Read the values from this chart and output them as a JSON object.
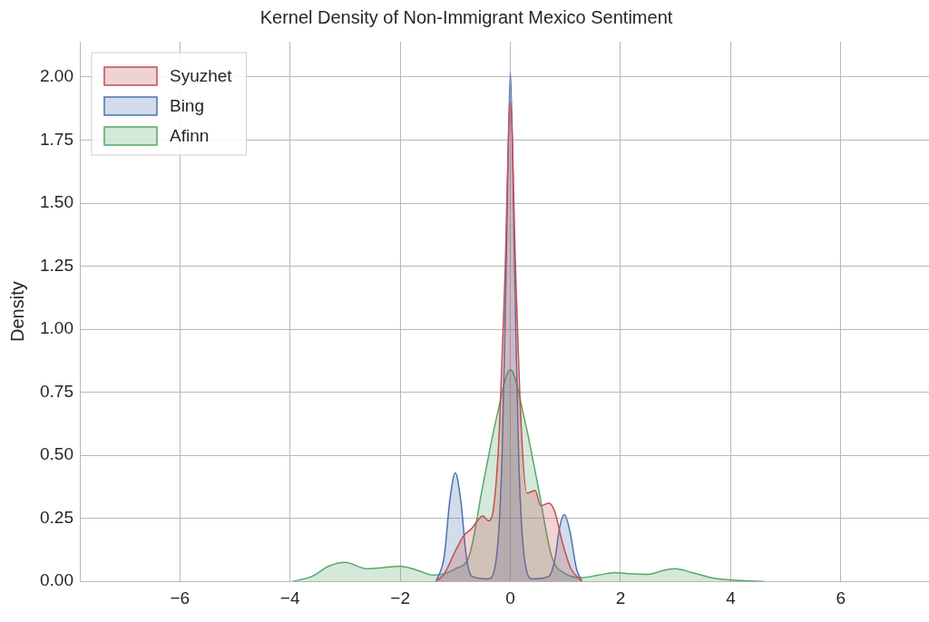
{
  "chart_data": {
    "type": "area",
    "title": "Kernel Density of Non-Immigrant Mexico Sentiment",
    "ylabel": "Density",
    "xlim": [
      -7.8,
      7.6
    ],
    "ylim": [
      0,
      2.14
    ],
    "xticks": [
      {
        "value": -6,
        "label": "−6"
      },
      {
        "value": -4,
        "label": "−4"
      },
      {
        "value": -2,
        "label": "−2"
      },
      0,
      2,
      4,
      6
    ],
    "yticks": [
      {
        "value": 0,
        "label": "0.00"
      },
      {
        "value": 0.25,
        "label": "0.25"
      },
      {
        "value": 0.5,
        "label": "0.50"
      },
      {
        "value": 0.75,
        "label": "0.75"
      },
      {
        "value": 1,
        "label": "1.00"
      },
      {
        "value": 1.25,
        "label": "1.25"
      },
      {
        "value": 1.5,
        "label": "1.50"
      },
      {
        "value": 1.75,
        "label": "1.75"
      },
      {
        "value": 2,
        "label": "2.00"
      }
    ],
    "grid": true,
    "legend": "top left",
    "series": [
      {
        "name": "Syuzhet",
        "color": "#c44e52",
        "x": [
          -1.35,
          -1.2,
          -1.0,
          -0.85,
          -0.7,
          -0.5,
          -0.4,
          -0.3,
          -0.2,
          -0.1,
          0,
          0.1,
          0.2,
          0.3,
          0.45,
          0.55,
          0.7,
          0.8,
          0.95,
          1.1,
          1.3
        ],
        "values": [
          0,
          0.03,
          0.12,
          0.18,
          0.21,
          0.26,
          0.24,
          0.3,
          0.6,
          1.2,
          1.9,
          1.2,
          0.6,
          0.35,
          0.36,
          0.3,
          0.31,
          0.28,
          0.15,
          0.05,
          0
        ]
      },
      {
        "name": "Bing",
        "color": "#4c72b0",
        "x": [
          -1.35,
          -1.2,
          -1.1,
          -1.0,
          -0.9,
          -0.8,
          -0.7,
          -0.4,
          -0.25,
          -0.15,
          -0.08,
          0,
          0.08,
          0.15,
          0.25,
          0.4,
          0.7,
          0.8,
          0.9,
          0.98,
          1.08,
          1.2,
          1.3
        ],
        "values": [
          0,
          0.1,
          0.32,
          0.43,
          0.32,
          0.1,
          0.02,
          0.01,
          0.1,
          0.5,
          1.2,
          2.02,
          1.2,
          0.5,
          0.1,
          0.01,
          0.02,
          0.08,
          0.22,
          0.265,
          0.2,
          0.05,
          0
        ]
      },
      {
        "name": "Afinn",
        "color": "#55a868",
        "x": [
          -3.95,
          -3.6,
          -3.3,
          -3.0,
          -2.6,
          -2.3,
          -2.0,
          -1.7,
          -1.4,
          -1.2,
          -1.0,
          -0.75,
          -0.5,
          -0.25,
          0,
          0.25,
          0.5,
          0.75,
          1.0,
          1.3,
          1.6,
          1.9,
          2.2,
          2.5,
          2.8,
          3.0,
          3.3,
          3.7,
          4.2,
          4.6
        ],
        "values": [
          0,
          0.02,
          0.06,
          0.075,
          0.05,
          0.055,
          0.06,
          0.045,
          0.025,
          0.03,
          0.05,
          0.1,
          0.38,
          0.65,
          0.84,
          0.65,
          0.38,
          0.1,
          0.03,
          0.015,
          0.025,
          0.035,
          0.03,
          0.028,
          0.045,
          0.05,
          0.035,
          0.012,
          0.003,
          0
        ]
      }
    ]
  }
}
